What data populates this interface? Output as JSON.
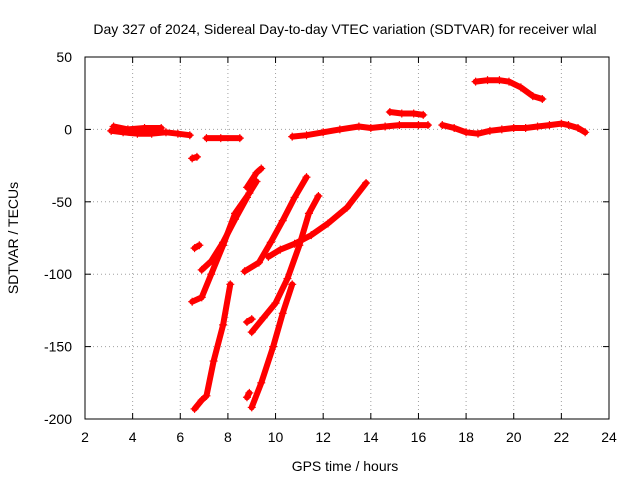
{
  "chart_data": {
    "type": "scatter",
    "title": "Day 327 of 2024, Sidereal Day-to-day VTEC variation (SDTVAR) for receiver wlal",
    "xlabel": "GPS time / hours",
    "ylabel": "SDTVAR / TECUs",
    "xlim": [
      2,
      24
    ],
    "ylim": [
      -200,
      50
    ],
    "xticks": [
      2,
      4,
      6,
      8,
      10,
      12,
      14,
      16,
      18,
      20,
      22,
      24
    ],
    "yticks": [
      -200,
      -150,
      -100,
      -50,
      0,
      50
    ],
    "xtick_labels": [
      "2",
      "4",
      "6",
      "8",
      "10",
      "12",
      "14",
      "16",
      "18",
      "20",
      "22",
      "24"
    ],
    "ytick_labels": [
      "-200",
      "-150",
      "-100",
      "-50",
      "0",
      "50"
    ],
    "grid": true,
    "color": "#ff0000",
    "marker": "+",
    "series": [
      {
        "name": "s1",
        "points": [
          [
            3.1,
            -1
          ],
          [
            3.6,
            -2
          ],
          [
            4.2,
            -3
          ],
          [
            4.8,
            -3
          ],
          [
            5.4,
            -2
          ],
          [
            5.9,
            -3
          ],
          [
            6.4,
            -4
          ]
        ]
      },
      {
        "name": "s2",
        "points": [
          [
            3.2,
            2
          ],
          [
            3.8,
            0
          ],
          [
            4.5,
            1
          ],
          [
            5.2,
            1
          ]
        ]
      },
      {
        "name": "s3",
        "points": [
          [
            6.5,
            -20
          ],
          [
            6.7,
            -19
          ]
        ]
      },
      {
        "name": "s4",
        "points": [
          [
            7.1,
            -6
          ],
          [
            7.7,
            -6
          ],
          [
            8.5,
            -6
          ]
        ]
      },
      {
        "name": "s5",
        "points": [
          [
            6.6,
            -82
          ],
          [
            6.8,
            -80
          ]
        ]
      },
      {
        "name": "s6",
        "points": [
          [
            6.9,
            -97
          ],
          [
            7.3,
            -91
          ],
          [
            7.8,
            -78
          ],
          [
            8.3,
            -62
          ],
          [
            8.8,
            -47
          ]
        ]
      },
      {
        "name": "s7",
        "points": [
          [
            6.5,
            -119
          ],
          [
            6.9,
            -116
          ],
          [
            7.3,
            -100
          ],
          [
            7.8,
            -80
          ],
          [
            8.3,
            -58
          ],
          [
            8.9,
            -44
          ],
          [
            9.2,
            -36
          ]
        ]
      },
      {
        "name": "s8",
        "points": [
          [
            8.8,
            -40
          ],
          [
            9.2,
            -30
          ],
          [
            9.4,
            -27
          ]
        ]
      },
      {
        "name": "s9",
        "points": [
          [
            6.6,
            -193
          ],
          [
            6.9,
            -187
          ],
          [
            7.1,
            -184
          ],
          [
            7.4,
            -160
          ],
          [
            7.8,
            -135
          ],
          [
            8.1,
            -107
          ]
        ]
      },
      {
        "name": "s10",
        "points": [
          [
            8.7,
            -98
          ],
          [
            9.3,
            -92
          ],
          [
            9.8,
            -78
          ],
          [
            10.3,
            -63
          ],
          [
            10.8,
            -47
          ],
          [
            11.3,
            -33
          ]
        ]
      },
      {
        "name": "s11",
        "points": [
          [
            9.7,
            -88
          ],
          [
            10.2,
            -83
          ],
          [
            10.8,
            -79
          ],
          [
            11.5,
            -73
          ],
          [
            12.2,
            -65
          ],
          [
            13.0,
            -54
          ],
          [
            13.8,
            -37
          ]
        ]
      },
      {
        "name": "s12",
        "points": [
          [
            8.8,
            -133
          ],
          [
            9.0,
            -131
          ]
        ]
      },
      {
        "name": "s13",
        "points": [
          [
            9.0,
            -140
          ],
          [
            9.5,
            -130
          ],
          [
            10.0,
            -120
          ],
          [
            10.5,
            -103
          ],
          [
            11.0,
            -80
          ],
          [
            11.4,
            -58
          ],
          [
            11.8,
            -46
          ]
        ]
      },
      {
        "name": "s14",
        "points": [
          [
            8.8,
            -185
          ],
          [
            8.9,
            -182
          ]
        ]
      },
      {
        "name": "s15",
        "points": [
          [
            9.0,
            -192
          ],
          [
            9.4,
            -175
          ],
          [
            9.9,
            -150
          ],
          [
            10.3,
            -127
          ],
          [
            10.7,
            -107
          ]
        ]
      },
      {
        "name": "s16",
        "points": [
          [
            10.7,
            -5
          ],
          [
            11.3,
            -4
          ],
          [
            12.0,
            -2
          ],
          [
            12.7,
            0
          ],
          [
            13.5,
            2
          ],
          [
            14.0,
            1
          ],
          [
            14.6,
            2
          ],
          [
            15.2,
            3
          ],
          [
            16.0,
            3
          ],
          [
            16.4,
            3
          ]
        ]
      },
      {
        "name": "s17",
        "points": [
          [
            14.8,
            12
          ],
          [
            15.3,
            11
          ],
          [
            15.8,
            11
          ],
          [
            16.2,
            10
          ]
        ]
      },
      {
        "name": "s18",
        "points": [
          [
            17.0,
            3
          ],
          [
            17.5,
            1
          ],
          [
            18.0,
            -2
          ],
          [
            18.5,
            -3
          ],
          [
            19.0,
            -1
          ],
          [
            19.5,
            0
          ],
          [
            20.0,
            1
          ],
          [
            20.5,
            1
          ],
          [
            21.0,
            2
          ],
          [
            21.5,
            3
          ],
          [
            22.0,
            4
          ],
          [
            22.3,
            3
          ],
          [
            22.7,
            1
          ],
          [
            23.0,
            -2
          ]
        ]
      },
      {
        "name": "s19",
        "points": [
          [
            18.4,
            33
          ],
          [
            18.9,
            34
          ],
          [
            19.4,
            34
          ],
          [
            19.8,
            33
          ],
          [
            20.3,
            29
          ],
          [
            20.8,
            23
          ],
          [
            21.2,
            21
          ]
        ]
      }
    ]
  }
}
